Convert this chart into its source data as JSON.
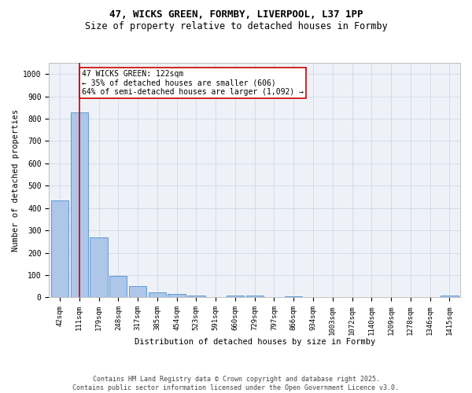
{
  "title_line1": "47, WICKS GREEN, FORMBY, LIVERPOOL, L37 1PP",
  "title_line2": "Size of property relative to detached houses in Formby",
  "xlabel": "Distribution of detached houses by size in Formby",
  "ylabel": "Number of detached properties",
  "categories": [
    "42sqm",
    "111sqm",
    "179sqm",
    "248sqm",
    "317sqm",
    "385sqm",
    "454sqm",
    "523sqm",
    "591sqm",
    "660sqm",
    "729sqm",
    "797sqm",
    "866sqm",
    "934sqm",
    "1003sqm",
    "1072sqm",
    "1140sqm",
    "1209sqm",
    "1278sqm",
    "1346sqm",
    "1415sqm"
  ],
  "values": [
    435,
    830,
    270,
    95,
    50,
    22,
    15,
    10,
    0,
    10,
    10,
    0,
    5,
    0,
    0,
    0,
    0,
    0,
    0,
    0,
    8
  ],
  "bar_color": "#aec6e8",
  "bar_edge_color": "#5b9bd5",
  "vline_x": 1,
  "vline_color": "#cc0000",
  "annotation_box_text": "47 WICKS GREEN: 122sqm\n← 35% of detached houses are smaller (606)\n64% of semi-detached houses are larger (1,092) →",
  "annotation_box_color": "#cc0000",
  "annotation_box_facecolor": "white",
  "ylim": [
    0,
    1050
  ],
  "yticks": [
    0,
    100,
    200,
    300,
    400,
    500,
    600,
    700,
    800,
    900,
    1000
  ],
  "grid_color": "#d0d8e8",
  "bg_color": "#eef2f8",
  "footer_text": "Contains HM Land Registry data © Crown copyright and database right 2025.\nContains public sector information licensed under the Open Government Licence v3.0.",
  "title_fontsize": 9,
  "subtitle_fontsize": 8.5,
  "axis_label_fontsize": 7.5,
  "tick_fontsize": 6.5,
  "annotation_fontsize": 7
}
